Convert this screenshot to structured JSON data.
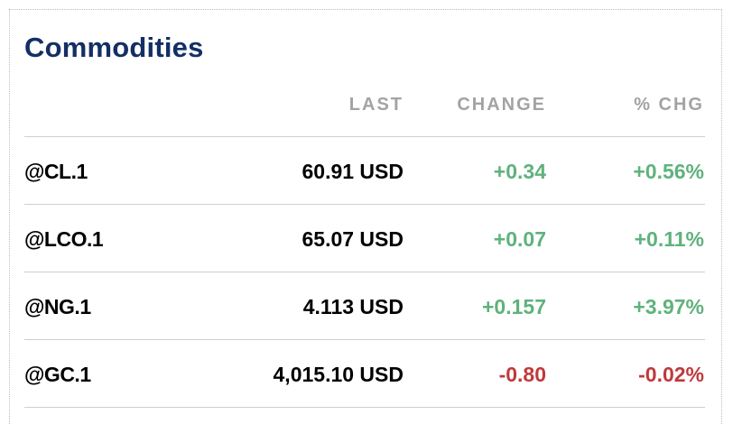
{
  "widget": {
    "title": "Commodities"
  },
  "columns": {
    "last": "LAST",
    "change": "CHANGE",
    "pct": "% CHG"
  },
  "rows": [
    {
      "symbol": "@CL.1",
      "last": "60.91 USD",
      "change": "+0.34",
      "pct": "+0.56%",
      "direction": "up"
    },
    {
      "symbol": "@LCO.1",
      "last": "65.07 USD",
      "change": "+0.07",
      "pct": "+0.11%",
      "direction": "up"
    },
    {
      "symbol": "@NG.1",
      "last": "4.113 USD",
      "change": "+0.157",
      "pct": "+3.97%",
      "direction": "up"
    },
    {
      "symbol": "@GC.1",
      "last": "4,015.10 USD",
      "change": "-0.80",
      "pct": "-0.02%",
      "direction": "down"
    }
  ],
  "colors": {
    "title": "#132f65",
    "header": "#a3a3a3",
    "positive": "#5fb27c",
    "negative": "#c0393b",
    "divider": "#cfcfcf"
  }
}
